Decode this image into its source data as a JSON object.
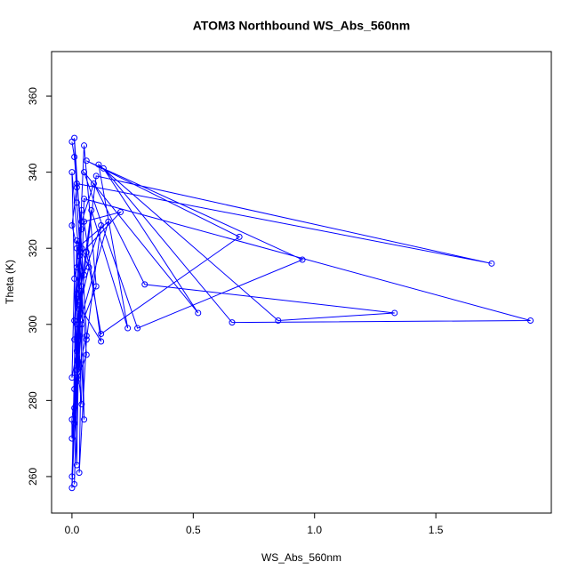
{
  "chart_data": {
    "type": "line",
    "title": "ATOM3 Northbound WS_Abs_560nm",
    "x_label": "WS_Abs_560nm",
    "y_label": "Theta (K)",
    "color": "#0000ff",
    "x": [
      0.0,
      0.01,
      0.02,
      0.0,
      0.03,
      0.01,
      0.02,
      0.0,
      0.0,
      0.03,
      0.05,
      0.1,
      1.73,
      0.02,
      0.04,
      0.01,
      0.0,
      0.02,
      0.06,
      0.12,
      0.69,
      0.06,
      0.95,
      0.27,
      0.05,
      0.52,
      0.13,
      0.66,
      1.89,
      0.05,
      0.03,
      0.01,
      0.0,
      0.02,
      0.04,
      0.09,
      0.3,
      1.33,
      0.85,
      0.11,
      0.23,
      0.08,
      0.03,
      0.01,
      0.02,
      0.03,
      0.07,
      0.02,
      0.0,
      0.04,
      0.02,
      0.01,
      0.04,
      0.06,
      0.02,
      0.01,
      0.03,
      0.12,
      0.05,
      0.2,
      0.03,
      0.01,
      0.04,
      0.02,
      0.12,
      0.06,
      0.03,
      0.04,
      0.1,
      0.05,
      0.03,
      0.06,
      0.02,
      0.0,
      0.04,
      0.05,
      0.02,
      0.15,
      0.03,
      0.01,
      0.04,
      0.02
    ],
    "values": [
      348,
      344,
      336,
      326,
      318,
      301,
      288,
      275,
      270,
      297,
      313,
      339,
      316,
      337,
      325,
      312,
      286,
      293,
      319,
      297.5,
      323,
      343,
      317,
      299,
      340,
      303,
      341,
      300.5,
      301,
      333,
      290,
      278,
      260,
      300,
      327,
      337,
      310.5,
      303,
      301,
      342,
      299,
      330,
      306,
      283,
      263,
      304,
      315,
      322,
      257,
      314,
      332,
      349,
      320,
      297,
      286,
      274,
      305,
      295.5,
      327,
      329.5,
      318,
      296,
      279,
      308,
      326,
      296,
      261,
      300,
      310,
      347,
      318,
      292,
      285,
      340,
      310,
      275,
      320,
      327,
      300,
      258,
      330,
      315
    ],
    "xlim": [
      -0.084,
      1.976
    ],
    "ylim": [
      250.4,
      371.7
    ],
    "xticks": [
      {
        "value": 0,
        "label": "0.0"
      },
      0.5,
      {
        "value": 1,
        "label": "1.0"
      },
      1.5
    ],
    "yticks": [
      260,
      280,
      300,
      320,
      340,
      360
    ]
  }
}
